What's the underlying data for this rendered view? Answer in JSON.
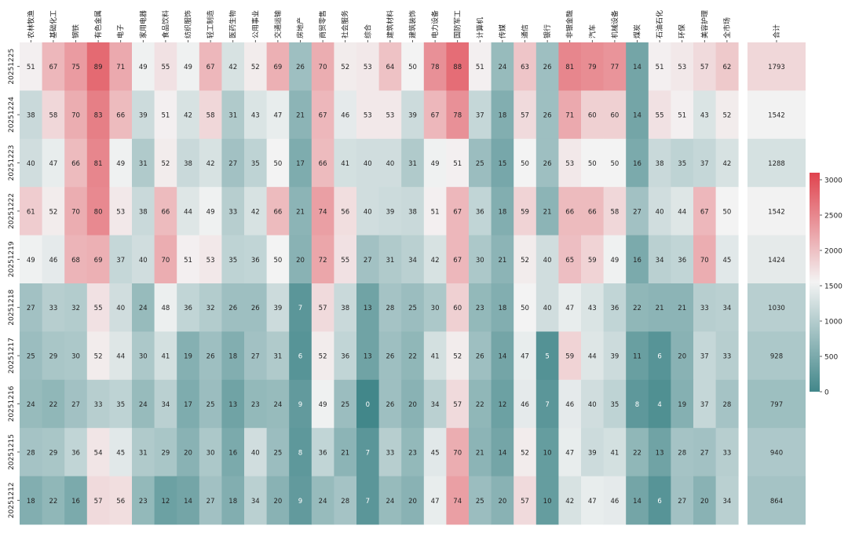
{
  "chart_data": {
    "type": "heatmap",
    "columns": [
      "农林牧渔",
      "基础化工",
      "钢铁",
      "有色金属",
      "电子",
      "家用电器",
      "食品饮料",
      "纺织服饰",
      "轻工制造",
      "医药生物",
      "公用事业",
      "交通运输",
      "房地产",
      "商贸零售",
      "社会服务",
      "综合",
      "建筑材料",
      "建筑装饰",
      "电力设备",
      "国防军工",
      "计算机",
      "传媒",
      "通信",
      "银行",
      "非银金融",
      "汽车",
      "机械设备",
      "煤炭",
      "石油石化",
      "环保",
      "美容护理",
      "全市场"
    ],
    "rows": [
      "20251225",
      "20251224",
      "20251223",
      "20251222",
      "20251219",
      "20251218",
      "20251217",
      "20251216",
      "20251215",
      "20251212"
    ],
    "values": [
      [
        51,
        67,
        75,
        89,
        71,
        49,
        55,
        49,
        67,
        42,
        52,
        69,
        26,
        70,
        52,
        53,
        64,
        50,
        78,
        88,
        51,
        24,
        63,
        26,
        81,
        79,
        77,
        14,
        51,
        53,
        57,
        62
      ],
      [
        38,
        58,
        70,
        83,
        66,
        39,
        51,
        42,
        58,
        31,
        43,
        47,
        21,
        67,
        46,
        53,
        53,
        39,
        67,
        78,
        37,
        18,
        57,
        26,
        71,
        60,
        60,
        14,
        55,
        51,
        43,
        52
      ],
      [
        40,
        47,
        66,
        81,
        49,
        31,
        52,
        38,
        42,
        27,
        35,
        50,
        17,
        66,
        41,
        40,
        40,
        31,
        49,
        51,
        25,
        15,
        50,
        26,
        53,
        50,
        50,
        16,
        38,
        35,
        37,
        42
      ],
      [
        61,
        52,
        70,
        80,
        53,
        38,
        66,
        44,
        49,
        33,
        42,
        66,
        21,
        74,
        56,
        40,
        39,
        38,
        51,
        67,
        36,
        18,
        59,
        21,
        66,
        66,
        58,
        27,
        40,
        44,
        67,
        50
      ],
      [
        49,
        46,
        68,
        69,
        37,
        40,
        70,
        51,
        53,
        35,
        36,
        50,
        20,
        72,
        55,
        27,
        31,
        34,
        42,
        67,
        30,
        21,
        52,
        40,
        65,
        59,
        49,
        16,
        34,
        36,
        70,
        45
      ],
      [
        27,
        33,
        32,
        55,
        40,
        24,
        48,
        36,
        32,
        26,
        26,
        39,
        7,
        57,
        38,
        13,
        28,
        25,
        30,
        60,
        23,
        18,
        50,
        40,
        47,
        43,
        36,
        22,
        21,
        21,
        33,
        34
      ],
      [
        25,
        29,
        30,
        52,
        44,
        30,
        41,
        19,
        26,
        18,
        27,
        31,
        6,
        52,
        36,
        13,
        26,
        22,
        41,
        52,
        26,
        14,
        47,
        5,
        59,
        44,
        39,
        11,
        6,
        20,
        37,
        33
      ],
      [
        24,
        22,
        27,
        33,
        35,
        24,
        34,
        17,
        25,
        13,
        23,
        24,
        9,
        49,
        25,
        0,
        26,
        20,
        34,
        57,
        22,
        12,
        46,
        7,
        46,
        40,
        35,
        8,
        4,
        19,
        37,
        28
      ],
      [
        28,
        29,
        36,
        54,
        45,
        31,
        29,
        20,
        30,
        16,
        40,
        25,
        8,
        36,
        21,
        7,
        33,
        23,
        45,
        70,
        21,
        14,
        52,
        10,
        47,
        39,
        41,
        22,
        13,
        28,
        27,
        33
      ],
      [
        18,
        22,
        16,
        57,
        56,
        23,
        12,
        14,
        27,
        18,
        34,
        20,
        9,
        24,
        28,
        7,
        24,
        20,
        47,
        74,
        25,
        20,
        57,
        10,
        42,
        47,
        46,
        14,
        6,
        27,
        20,
        34
      ]
    ],
    "total_label": "合计",
    "totals": [
      1793,
      1542,
      1288,
      1542,
      1424,
      1030,
      928,
      797,
      940,
      864
    ],
    "colorbar": {
      "min": 0,
      "max": 3100,
      "ticks": [
        0,
        500,
        1000,
        1500,
        2000,
        2500,
        3000
      ],
      "colors": [
        "#42878a",
        "#f3f3f3",
        "#e0434e"
      ]
    }
  }
}
